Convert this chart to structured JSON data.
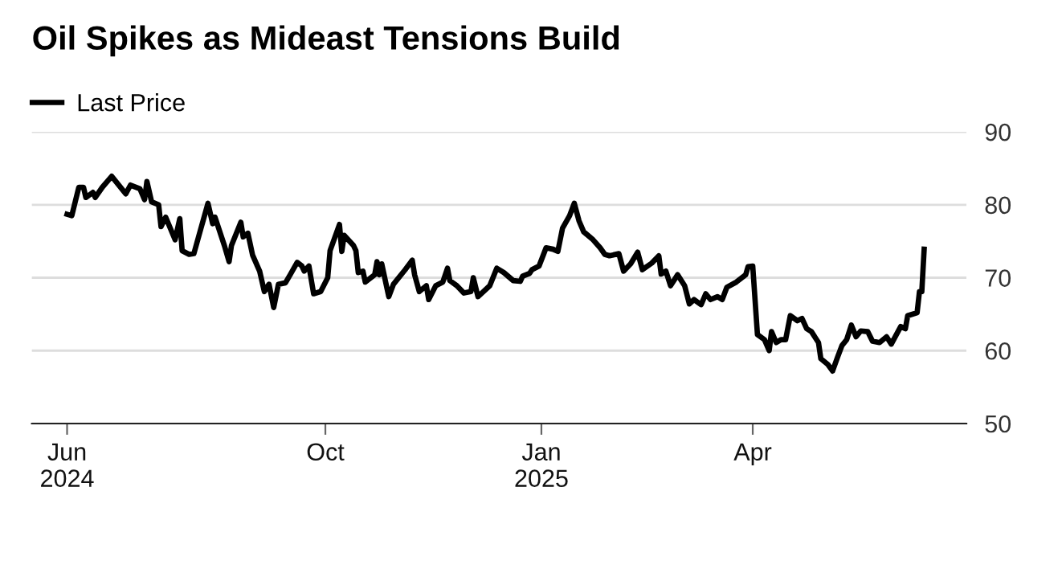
{
  "chart_data": {
    "type": "line",
    "title": "Oil Spikes as Mideast Tensions Build",
    "legend": "top left",
    "grid": "y",
    "line_style": "solid",
    "marker": "none",
    "xlim": [
      "2024-05-29",
      "2025-07-01"
    ],
    "xticks": [
      {
        "value": "2024-06-13",
        "label": "Jun\n2024"
      },
      {
        "value": "2024-10-01",
        "label": "Oct"
      },
      {
        "value": "2025-01-01",
        "label": "Jan\n2025"
      },
      {
        "value": "2025-04-01",
        "label": "Apr"
      }
    ],
    "ylim": [
      50,
      90
    ],
    "yticks": [
      50,
      60,
      70,
      80,
      90
    ],
    "x": [
      "2024-06-13",
      "2024-06-15",
      "2024-06-18",
      "2024-06-20",
      "2024-06-21",
      "2024-06-24",
      "2024-06-25",
      "2024-06-28",
      "2024-07-02",
      "2024-07-08",
      "2024-07-10",
      "2024-07-14",
      "2024-07-16",
      "2024-07-17",
      "2024-07-19",
      "2024-07-22",
      "2024-07-23",
      "2024-07-25",
      "2024-07-29",
      "2024-07-31",
      "2024-08-01",
      "2024-08-04",
      "2024-08-06",
      "2024-08-08",
      "2024-08-12",
      "2024-08-14",
      "2024-08-15",
      "2024-08-19",
      "2024-08-21",
      "2024-08-22",
      "2024-08-26",
      "2024-08-27",
      "2024-08-29",
      "2024-08-31",
      "2024-09-03",
      "2024-09-05",
      "2024-09-07",
      "2024-09-09",
      "2024-09-11",
      "2024-09-14",
      "2024-09-16",
      "2024-09-19",
      "2024-09-21",
      "2024-09-22",
      "2024-09-24",
      "2024-09-26",
      "2024-09-29",
      "2024-10-02",
      "2024-10-03",
      "2024-10-07",
      "2024-10-08",
      "2024-10-09",
      "2024-10-13",
      "2024-10-14",
      "2024-10-15",
      "2024-10-17",
      "2024-10-18",
      "2024-10-22",
      "2024-10-23",
      "2024-10-24",
      "2024-10-25",
      "2024-10-28",
      "2024-10-30",
      "2024-11-04",
      "2024-11-07",
      "2024-11-08",
      "2024-11-10",
      "2024-11-13",
      "2024-11-14",
      "2024-11-17",
      "2024-11-20",
      "2024-11-22",
      "2024-11-23",
      "2024-11-26",
      "2024-11-29",
      "2024-12-02",
      "2024-12-03",
      "2024-12-05",
      "2024-12-10",
      "2024-12-13",
      "2024-12-16",
      "2024-12-20",
      "2024-12-23",
      "2024-12-24",
      "2024-12-27",
      "2024-12-28",
      "2024-12-31",
      "2025-01-03",
      "2025-01-06",
      "2025-01-08",
      "2025-01-10",
      "2025-01-13",
      "2025-01-15",
      "2025-01-17",
      "2025-01-19",
      "2025-01-23",
      "2025-01-26",
      "2025-01-28",
      "2025-01-30",
      "2025-02-03",
      "2025-02-05",
      "2025-02-08",
      "2025-02-11",
      "2025-02-13",
      "2025-02-17",
      "2025-02-20",
      "2025-02-21",
      "2025-02-23",
      "2025-02-25",
      "2025-02-28",
      "2025-03-03",
      "2025-03-05",
      "2025-03-07",
      "2025-03-10",
      "2025-03-12",
      "2025-03-14",
      "2025-03-17",
      "2025-03-19",
      "2025-03-21",
      "2025-03-25",
      "2025-03-29",
      "2025-03-30",
      "2025-04-01",
      "2025-04-03",
      "2025-04-06",
      "2025-04-08",
      "2025-04-09",
      "2025-04-11",
      "2025-04-13",
      "2025-04-15",
      "2025-04-17",
      "2025-04-20",
      "2025-04-22",
      "2025-04-24",
      "2025-04-26",
      "2025-04-29",
      "2025-04-30",
      "2025-05-03",
      "2025-05-05",
      "2025-05-07",
      "2025-05-09",
      "2025-05-11",
      "2025-05-13",
      "2025-05-15",
      "2025-05-17",
      "2025-05-20",
      "2025-05-22",
      "2025-05-25",
      "2025-05-28",
      "2025-05-30",
      "2025-06-03",
      "2025-06-05",
      "2025-06-06",
      "2025-06-10",
      "2025-06-11",
      "2025-06-12",
      "2025-06-13"
    ],
    "series": [
      {
        "name": "Last Price",
        "color": "#000000",
        "values": [
          78.7,
          78.5,
          82.4,
          82.4,
          81.0,
          81.7,
          81.0,
          82.4,
          83.9,
          81.5,
          82.7,
          82.2,
          80.7,
          83.2,
          80.4,
          80.0,
          77.0,
          78.3,
          75.2,
          78.1,
          73.7,
          73.2,
          73.3,
          75.6,
          80.2,
          77.4,
          78.3,
          74.4,
          72.2,
          74.4,
          77.6,
          75.6,
          76.1,
          73.1,
          70.9,
          68.1,
          69.1,
          65.9,
          69.1,
          69.3,
          70.4,
          72.1,
          71.6,
          70.9,
          71.6,
          67.8,
          68.1,
          70.0,
          73.7,
          77.3,
          73.6,
          75.8,
          74.4,
          73.7,
          70.7,
          70.9,
          69.4,
          70.4,
          72.2,
          70.4,
          71.9,
          67.4,
          69.1,
          71.1,
          72.4,
          70.4,
          68.1,
          68.9,
          67.0,
          68.9,
          69.4,
          71.3,
          69.6,
          68.9,
          67.9,
          68.1,
          70.0,
          67.4,
          68.9,
          71.3,
          70.7,
          69.6,
          69.5,
          70.2,
          70.6,
          71.1,
          71.6,
          74.1,
          73.9,
          73.6,
          76.8,
          78.5,
          80.2,
          77.8,
          76.3,
          75.2,
          74.1,
          73.2,
          73.0,
          73.3,
          70.9,
          71.9,
          73.5,
          71.1,
          72.0,
          73.0,
          70.5,
          70.9,
          68.9,
          70.4,
          68.9,
          66.4,
          67.0,
          66.3,
          67.8,
          67.0,
          67.4,
          67.0,
          68.7,
          69.4,
          70.4,
          71.5,
          71.6,
          62.2,
          61.5,
          60.0,
          62.6,
          61.1,
          61.5,
          61.5,
          64.8,
          64.1,
          64.4,
          63.0,
          62.6,
          61.1,
          58.9,
          58.1,
          57.2,
          59.0,
          60.7,
          61.5,
          63.5,
          61.9,
          62.7,
          62.6,
          61.3,
          61.1,
          61.9,
          60.9,
          63.3,
          63.0,
          64.8,
          65.2,
          68.1,
          68.1,
          73.9
        ]
      }
    ]
  }
}
